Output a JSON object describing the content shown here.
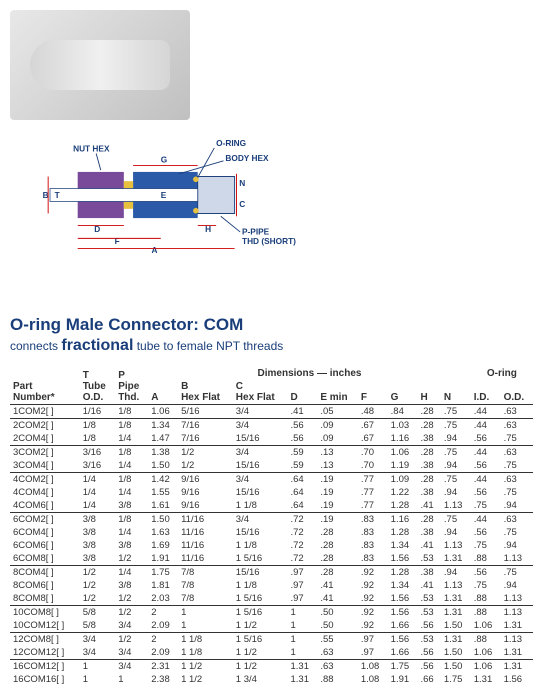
{
  "diagram": {
    "labels": {
      "nut_hex": "NUT HEX",
      "o_ring": "O-RING",
      "body_hex": "BODY HEX",
      "p_pipe": "P-PIPE",
      "thd_short": "THD (SHORT)"
    },
    "dims": [
      "A",
      "B",
      "C",
      "D",
      "E",
      "F",
      "G",
      "H",
      "N",
      "T"
    ]
  },
  "title": "O-ring Male Connector: COM",
  "subtitle_prefix": "connects ",
  "subtitle_frac": "fractional",
  "subtitle_suffix": " tube to female NPT threads",
  "table": {
    "group_dimensions": "Dimensions — inches",
    "group_oring": "O-ring",
    "cols": {
      "part": "Part\nNumber*",
      "t": "T\nTube\nO.D.",
      "p": "P\nPipe\nThd.",
      "a": "A",
      "b": "B\nHex Flat",
      "c": "C\nHex Flat",
      "d": "D",
      "emin": "E min",
      "f": "F",
      "g": "G",
      "h": "H",
      "n": "N",
      "oring_id": "I.D.",
      "oring_od": "O.D."
    },
    "rows": [
      {
        "part": "1COM2[ ]",
        "t": "1/16",
        "p": "1/8",
        "a": "1.06",
        "b": "5/16",
        "c": "3/4",
        "d": ".41",
        "emin": ".05",
        "f": ".48",
        "g": ".84",
        "h": ".28",
        "n": ".75",
        "oid": ".44",
        "ood": ".63",
        "rule": true
      },
      {
        "part": "2COM2[ ]",
        "t": "1/8",
        "p": "1/8",
        "a": "1.34",
        "b": "7/16",
        "c": "3/4",
        "d": ".56",
        "emin": ".09",
        "f": ".67",
        "g": "1.03",
        "h": ".28",
        "n": ".75",
        "oid": ".44",
        "ood": ".63"
      },
      {
        "part": "2COM4[ ]",
        "t": "1/8",
        "p": "1/4",
        "a": "1.47",
        "b": "7/16",
        "c": "15/16",
        "d": ".56",
        "emin": ".09",
        "f": ".67",
        "g": "1.16",
        "h": ".38",
        "n": ".94",
        "oid": ".56",
        "ood": ".75",
        "rule": true
      },
      {
        "part": "3COM2[ ]",
        "t": "3/16",
        "p": "1/8",
        "a": "1.38",
        "b": "1/2",
        "c": "3/4",
        "d": ".59",
        "emin": ".13",
        "f": ".70",
        "g": "1.06",
        "h": ".28",
        "n": ".75",
        "oid": ".44",
        "ood": ".63"
      },
      {
        "part": "3COM4[ ]",
        "t": "3/16",
        "p": "1/4",
        "a": "1.50",
        "b": "1/2",
        "c": "15/16",
        "d": ".59",
        "emin": ".13",
        "f": ".70",
        "g": "1.19",
        "h": ".38",
        "n": ".94",
        "oid": ".56",
        "ood": ".75",
        "rule": true
      },
      {
        "part": "4COM2[ ]",
        "t": "1/4",
        "p": "1/8",
        "a": "1.42",
        "b": "9/16",
        "c": "3/4",
        "d": ".64",
        "emin": ".19",
        "f": ".77",
        "g": "1.09",
        "h": ".28",
        "n": ".75",
        "oid": ".44",
        "ood": ".63"
      },
      {
        "part": "4COM4[ ]",
        "t": "1/4",
        "p": "1/4",
        "a": "1.55",
        "b": "9/16",
        "c": "15/16",
        "d": ".64",
        "emin": ".19",
        "f": ".77",
        "g": "1.22",
        "h": ".38",
        "n": ".94",
        "oid": ".56",
        "ood": ".75"
      },
      {
        "part": "4COM6[ ]",
        "t": "1/4",
        "p": "3/8",
        "a": "1.61",
        "b": "9/16",
        "c": "1 1/8",
        "d": ".64",
        "emin": ".19",
        "f": ".77",
        "g": "1.28",
        "h": ".41",
        "n": "1.13",
        "oid": ".75",
        "ood": ".94",
        "rule": true
      },
      {
        "part": "6COM2[ ]",
        "t": "3/8",
        "p": "1/8",
        "a": "1.50",
        "b": "11/16",
        "c": "3/4",
        "d": ".72",
        "emin": ".19",
        "f": ".83",
        "g": "1.16",
        "h": ".28",
        "n": ".75",
        "oid": ".44",
        "ood": ".63"
      },
      {
        "part": "6COM4[ ]",
        "t": "3/8",
        "p": "1/4",
        "a": "1.63",
        "b": "11/16",
        "c": "15/16",
        "d": ".72",
        "emin": ".28",
        "f": ".83",
        "g": "1.28",
        "h": ".38",
        "n": ".94",
        "oid": ".56",
        "ood": ".75"
      },
      {
        "part": "6COM6[ ]",
        "t": "3/8",
        "p": "3/8",
        "a": "1.69",
        "b": "11/16",
        "c": "1 1/8",
        "d": ".72",
        "emin": ".28",
        "f": ".83",
        "g": "1.34",
        "h": ".41",
        "n": "1.13",
        "oid": ".75",
        "ood": ".94"
      },
      {
        "part": "6COM8[ ]",
        "t": "3/8",
        "p": "1/2",
        "a": "1.91",
        "b": "11/16",
        "c": "1 5/16",
        "d": ".72",
        "emin": ".28",
        "f": ".83",
        "g": "1.56",
        "h": ".53",
        "n": "1.31",
        "oid": ".88",
        "ood": "1.13",
        "rule": true
      },
      {
        "part": "8COM4[ ]",
        "t": "1/2",
        "p": "1/4",
        "a": "1.75",
        "b": "7/8",
        "c": "15/16",
        "d": ".97",
        "emin": ".28",
        "f": ".92",
        "g": "1.28",
        "h": ".38",
        "n": ".94",
        "oid": ".56",
        "ood": ".75"
      },
      {
        "part": "8COM6[ ]",
        "t": "1/2",
        "p": "3/8",
        "a": "1.81",
        "b": "7/8",
        "c": "1 1/8",
        "d": ".97",
        "emin": ".41",
        "f": ".92",
        "g": "1.34",
        "h": ".41",
        "n": "1.13",
        "oid": ".75",
        "ood": ".94"
      },
      {
        "part": "8COM8[ ]",
        "t": "1/2",
        "p": "1/2",
        "a": "2.03",
        "b": "7/8",
        "c": "1 5/16",
        "d": ".97",
        "emin": ".41",
        "f": ".92",
        "g": "1.56",
        "h": ".53",
        "n": "1.31",
        "oid": ".88",
        "ood": "1.13",
        "rule": true
      },
      {
        "part": "10COM8[ ]",
        "t": "5/8",
        "p": "1/2",
        "a": "2",
        "b": "1",
        "c": "1 5/16",
        "d": "1",
        "emin": ".50",
        "f": ".92",
        "g": "1.56",
        "h": ".53",
        "n": "1.31",
        "oid": ".88",
        "ood": "1.13"
      },
      {
        "part": "10COM12[ ]",
        "t": "5/8",
        "p": "3/4",
        "a": "2.09",
        "b": "1",
        "c": "1 1/2",
        "d": "1",
        "emin": ".50",
        "f": ".92",
        "g": "1.66",
        "h": ".56",
        "n": "1.50",
        "oid": "1.06",
        "ood": "1.31",
        "rule": true
      },
      {
        "part": "12COM8[ ]",
        "t": "3/4",
        "p": "1/2",
        "a": "2",
        "b": "1 1/8",
        "c": "1 5/16",
        "d": "1",
        "emin": ".55",
        "f": ".97",
        "g": "1.56",
        "h": ".53",
        "n": "1.31",
        "oid": ".88",
        "ood": "1.13"
      },
      {
        "part": "12COM12[ ]",
        "t": "3/4",
        "p": "3/4",
        "a": "2.09",
        "b": "1 1/8",
        "c": "1 1/2",
        "d": "1",
        "emin": ".63",
        "f": ".97",
        "g": "1.66",
        "h": ".56",
        "n": "1.50",
        "oid": "1.06",
        "ood": "1.31",
        "rule": true
      },
      {
        "part": "16COM12[ ]",
        "t": "1",
        "p": "3/4",
        "a": "2.31",
        "b": "1 1/2",
        "c": "1 1/2",
        "d": "1.31",
        "emin": ".63",
        "f": "1.08",
        "g": "1.75",
        "h": ".56",
        "n": "1.50",
        "oid": "1.06",
        "ood": "1.31"
      },
      {
        "part": "16COM16[ ]",
        "t": "1",
        "p": "1",
        "a": "2.38",
        "b": "1 1/2",
        "c": "1 3/4",
        "d": "1.31",
        "emin": ".88",
        "f": "1.08",
        "g": "1.91",
        "h": ".66",
        "n": "1.75",
        "oid": "1.31",
        "ood": "1.56"
      }
    ]
  },
  "colors": {
    "heading": "#1a3e7a",
    "body_fill": "#2a5aa8",
    "nut_fill": "#7a4a9a",
    "ferrule": "#e8c040",
    "dim_line": "#c00"
  }
}
